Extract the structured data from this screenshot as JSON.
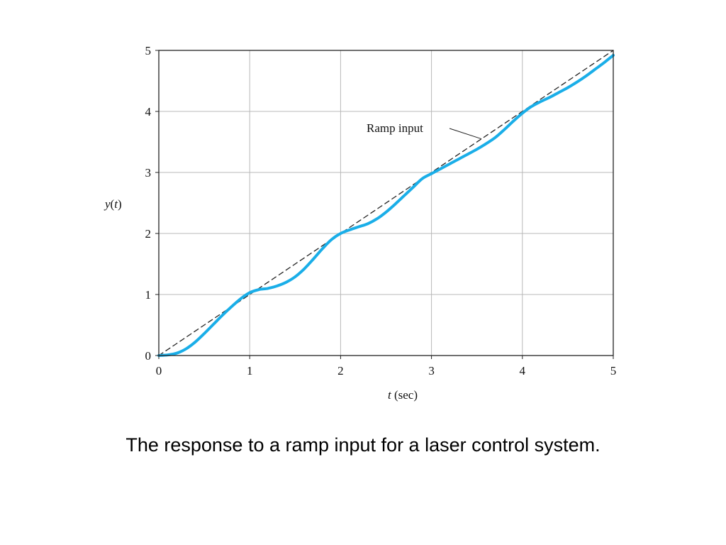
{
  "caption": "The response to a ramp input for a laser control system.",
  "chart_data": {
    "type": "line",
    "xlabel_italic": "t",
    "xlabel_rest": " (sec)",
    "ylabel_italic_y": "y",
    "ylabel_open": "(",
    "ylabel_italic_t": "t",
    "ylabel_close": ")",
    "xlim": [
      0,
      5
    ],
    "ylim": [
      0,
      5
    ],
    "xticks": [
      "0",
      "1",
      "2",
      "3",
      "4",
      "5"
    ],
    "yticks": [
      "0",
      "1",
      "2",
      "3",
      "4",
      "5"
    ],
    "grid": true,
    "annotation": {
      "text": "Ramp input",
      "points_to": [
        3.55,
        3.55
      ]
    },
    "series": [
      {
        "style": "dashed",
        "color": "#222222",
        "x": [
          0,
          5
        ],
        "y": [
          0,
          5
        ]
      },
      {
        "style": "solid",
        "color": "#1aaee8",
        "x": [
          0,
          0.1,
          0.2,
          0.3,
          0.4,
          0.5,
          0.6,
          0.7,
          0.8,
          0.9,
          1.0,
          1.1,
          1.2,
          1.3,
          1.4,
          1.5,
          1.6,
          1.7,
          1.8,
          1.9,
          2.0,
          2.1,
          2.2,
          2.3,
          2.4,
          2.5,
          2.6,
          2.7,
          2.8,
          2.9,
          3.0,
          3.1,
          3.2,
          3.3,
          3.4,
          3.5,
          3.6,
          3.7,
          3.8,
          3.9,
          4.0,
          4.1,
          4.2,
          4.3,
          4.4,
          4.5,
          4.6,
          4.7,
          4.8,
          4.9,
          5.0
        ],
        "y": [
          0,
          0.01,
          0.04,
          0.11,
          0.22,
          0.36,
          0.51,
          0.66,
          0.8,
          0.93,
          1.03,
          1.08,
          1.1,
          1.14,
          1.2,
          1.29,
          1.42,
          1.58,
          1.75,
          1.9,
          2.0,
          2.06,
          2.11,
          2.16,
          2.24,
          2.35,
          2.48,
          2.62,
          2.76,
          2.9,
          2.98,
          3.06,
          3.14,
          3.22,
          3.3,
          3.38,
          3.47,
          3.57,
          3.7,
          3.84,
          3.97,
          4.08,
          4.16,
          4.23,
          4.31,
          4.39,
          4.48,
          4.58,
          4.69,
          4.8,
          4.92
        ]
      }
    ]
  }
}
